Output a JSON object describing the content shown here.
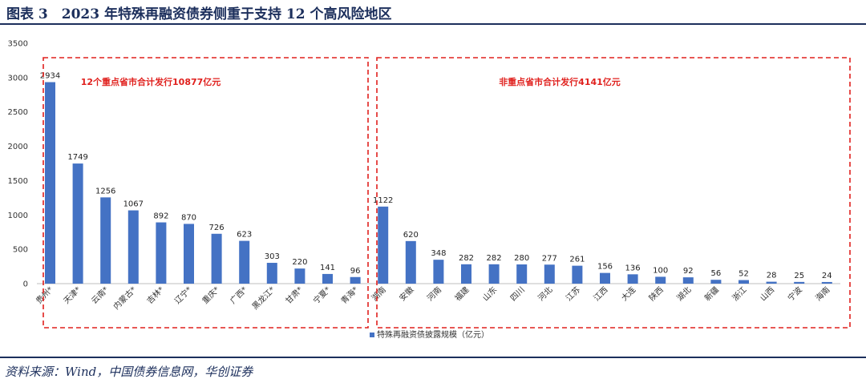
{
  "figure": {
    "title": "图表 3　2023 年特殊再融资债券侧重于支持 12 个高风险地区",
    "source": "资料来源：Wind，中国债券信息网，华创证券"
  },
  "chart_data": {
    "type": "bar",
    "categories": [
      "贵州*",
      "天津*",
      "云南*",
      "内蒙古*",
      "吉林*",
      "辽宁*",
      "重庆*",
      "广西*",
      "黑龙江*",
      "甘肃*",
      "宁夏*",
      "青海*",
      "湖南",
      "安徽",
      "河南",
      "福建",
      "山东",
      "四川",
      "河北",
      "江苏",
      "江西",
      "大连",
      "陕西",
      "湖北",
      "新疆",
      "浙江",
      "山西",
      "宁波",
      "海南"
    ],
    "series": [
      {
        "name": "特殊再融资债披露规模（亿元）",
        "values": [
          2934,
          1749,
          1256,
          1067,
          892,
          870,
          726,
          623,
          303,
          220,
          141,
          96,
          1122,
          620,
          348,
          282,
          282,
          280,
          277,
          261,
          156,
          136,
          100,
          92,
          56,
          52,
          28,
          25,
          24
        ]
      }
    ],
    "ylim": [
      0,
      3500
    ],
    "yticks": [
      0,
      500,
      1000,
      1500,
      2000,
      2500,
      3000,
      3500
    ],
    "bar_color": "#4472c4",
    "annotation_color": "#e0201d",
    "annotations": [
      {
        "text": "12个重点省市合计发行10877亿元"
      },
      {
        "text": "非重点省市合计发行4141亿元"
      }
    ],
    "legend_position": "bottom-center",
    "grid": false
  }
}
